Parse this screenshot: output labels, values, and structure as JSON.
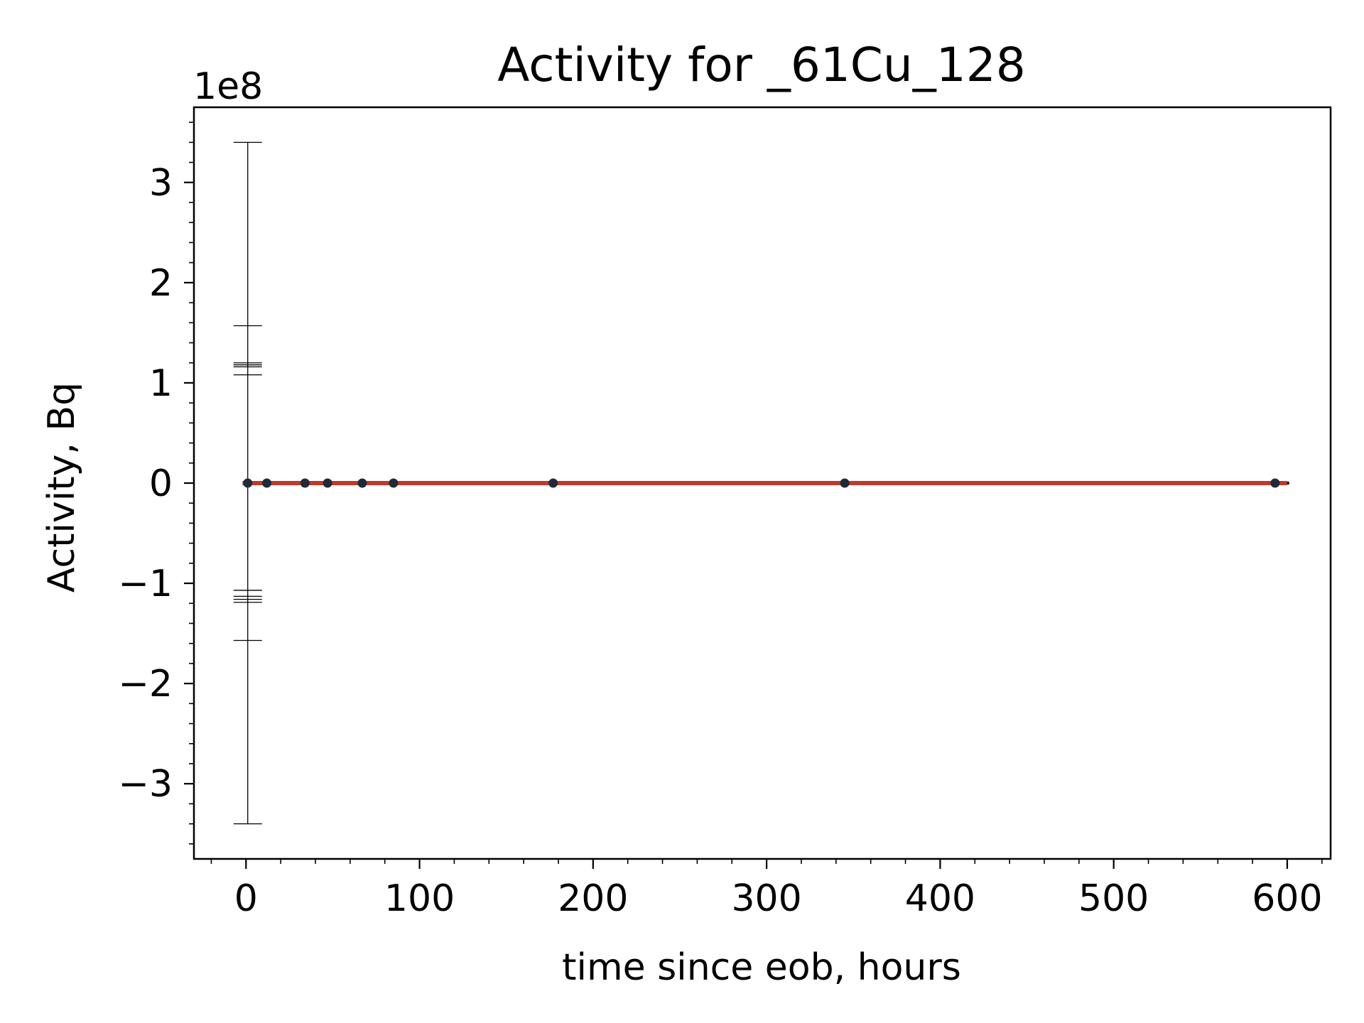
{
  "chart_data": {
    "type": "scatter",
    "title": "Activity for _61Cu_128",
    "xlabel": "time since eob, hours",
    "ylabel": "Activity, Bq",
    "y_offset_text": "1e8",
    "y_multiplier": 100000000,
    "xlim": [
      -30,
      625
    ],
    "ylim": [
      -3.75,
      3.75
    ],
    "xticks": [
      {
        "value": 0,
        "label": "0"
      },
      {
        "value": 100,
        "label": "100"
      },
      {
        "value": 200,
        "label": "200"
      },
      {
        "value": 300,
        "label": "300"
      },
      {
        "value": 400,
        "label": "400"
      },
      {
        "value": 500,
        "label": "500"
      },
      {
        "value": 600,
        "label": "600"
      }
    ],
    "yticks": [
      {
        "value": -3,
        "label": "−3"
      },
      {
        "value": -2,
        "label": "−2"
      },
      {
        "value": -1,
        "label": "−1"
      },
      {
        "value": 0,
        "label": "0"
      },
      {
        "value": 1,
        "label": "1"
      },
      {
        "value": 2,
        "label": "2"
      },
      {
        "value": 3,
        "label": "3"
      }
    ],
    "x_minor_step": 20,
    "y_minor_step": 0.2,
    "grid": false,
    "points": [
      {
        "x": 1,
        "y": 0.0,
        "yerr": 3.4
      },
      {
        "x": 12,
        "y": 0.0,
        "yerr": 0.01
      },
      {
        "x": 34,
        "y": 0.0,
        "yerr": 0.01
      },
      {
        "x": 47,
        "y": 0.0,
        "yerr": 0.01
      },
      {
        "x": 67,
        "y": 0.0,
        "yerr": 0.01
      },
      {
        "x": 85,
        "y": 0.0,
        "yerr": 0.01
      },
      {
        "x": 177,
        "y": 0.0,
        "yerr": 0.01
      },
      {
        "x": 345,
        "y": 0.0,
        "yerr": 0.01
      },
      {
        "x": 593,
        "y": 0.0,
        "yerr": 0.01
      }
    ],
    "extra_error_caps": [
      1.57,
      1.2,
      1.18,
      1.16,
      1.08,
      -1.07,
      -1.13,
      -1.16,
      -1.19,
      -1.57
    ],
    "x_error_bars": [
      {
        "x": 12,
        "xerr": 8
      },
      {
        "x": 85,
        "xerr": 15
      },
      {
        "x": 177,
        "xerr": 8
      },
      {
        "x": 345,
        "xerr": 8
      },
      {
        "x": 593,
        "xerr": 8
      }
    ],
    "fit_line": {
      "x": [
        -2,
        600
      ],
      "y": [
        0,
        0
      ]
    },
    "colors": {
      "points": "#1f2a3a",
      "error_bars": "#000000",
      "fit": "#c0392b"
    }
  }
}
